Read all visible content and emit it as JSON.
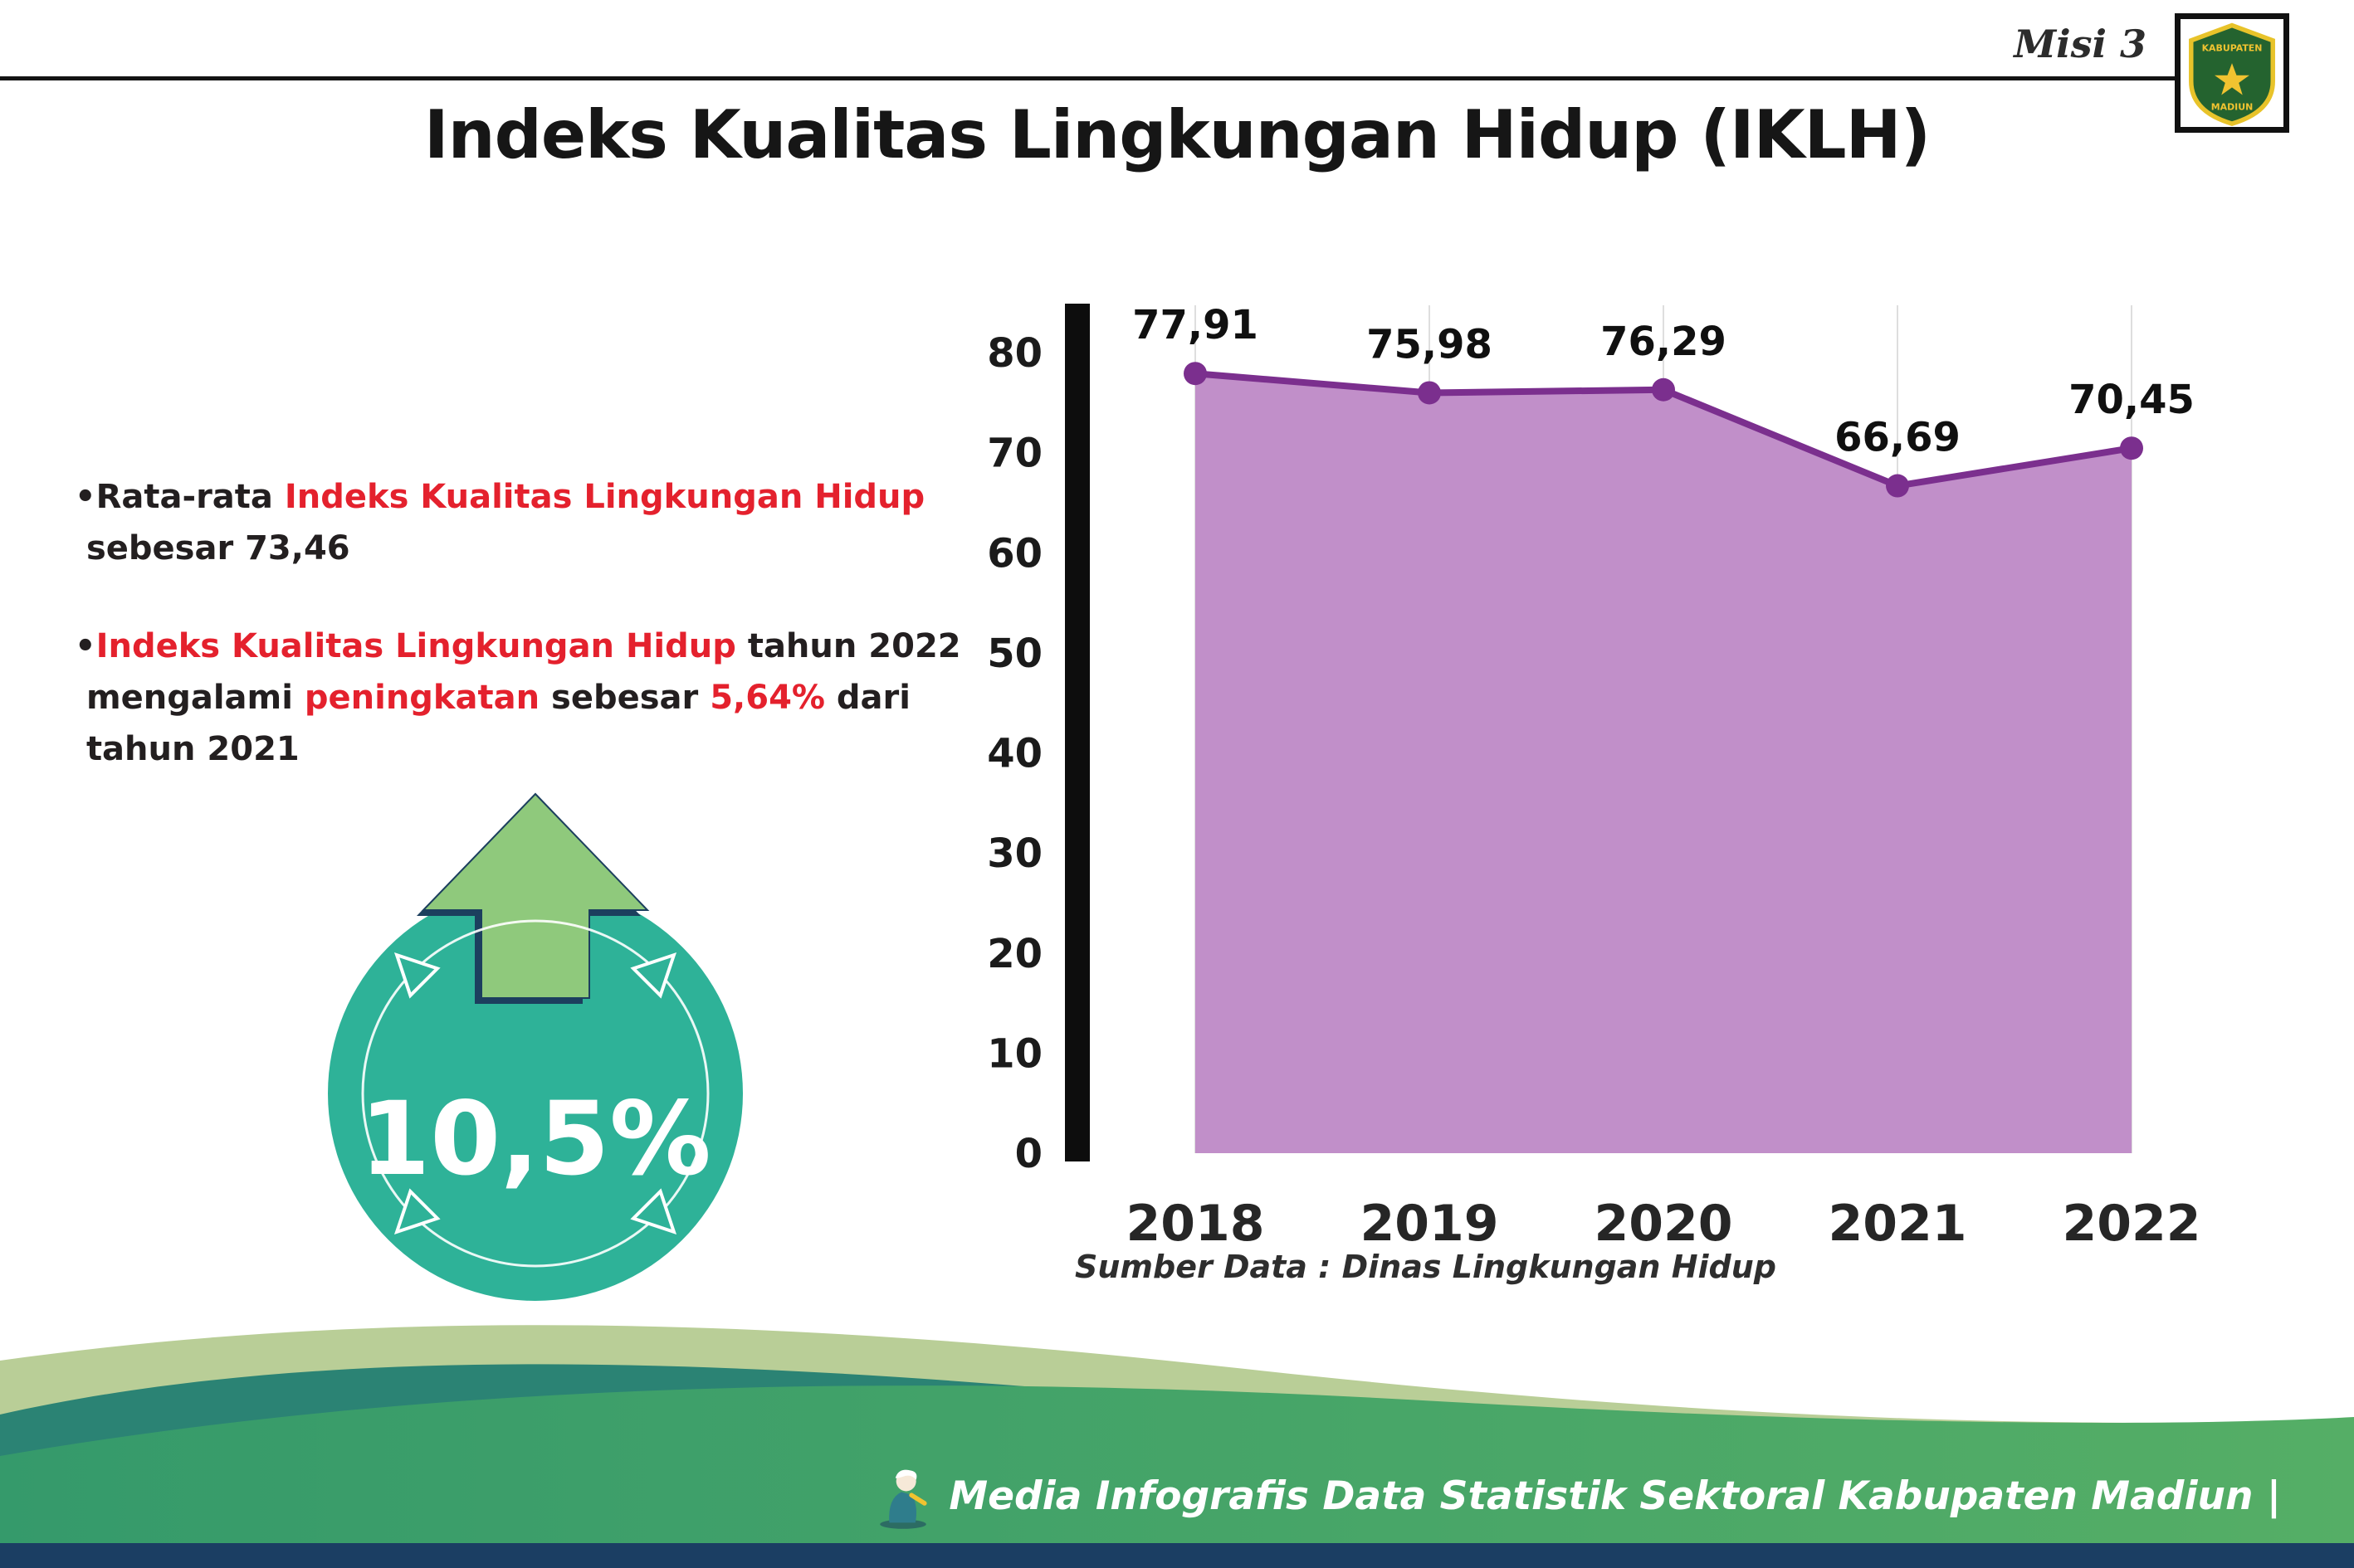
{
  "header": {
    "misi_label": "Misi 3",
    "title": "Indeks Kualitas Lingkungan Hidup (IKLH)",
    "logo": {
      "line1": "KABUPATEN",
      "line2": "MADIUN"
    }
  },
  "colors": {
    "highlight_red": "#e4212d",
    "badge_teal": "#2eb298",
    "arrow_green": "#8fc97c",
    "arrow_outline_navy": "#1c3f5e",
    "footer_green": "#43a266",
    "footer_teal": "#2b8374",
    "footer_sage": "#b9ce97",
    "footer_navy": "#1b3e63"
  },
  "bullets": [
    {
      "segments": [
        {
          "text": "•Rata-rata "
        },
        {
          "text": "Indeks Kualitas Lingkungan Hidup"
        },
        {
          "text": "\n sebesar 73,46"
        }
      ]
    },
    {
      "segments": [
        {
          "text": "•"
        },
        {
          "text": "Indeks Kualitas Lingkungan Hidup"
        },
        {
          "text": " tahun 2022\n mengalami "
        },
        {
          "text": "peningkatan"
        },
        {
          "text": " sebesar "
        },
        {
          "text": "5,64%"
        },
        {
          "text": " dari\n tahun 2021"
        }
      ]
    }
  ],
  "badge": {
    "value": "10,5%"
  },
  "chart_data": {
    "type": "area",
    "categories": [
      "2018",
      "2019",
      "2020",
      "2021",
      "2022"
    ],
    "values": [
      77.91,
      75.98,
      76.29,
      66.69,
      70.45
    ],
    "point_labels": [
      "77,91",
      "75,98",
      "76,29",
      "66,69",
      "70,45"
    ],
    "title": "",
    "xlabel": "",
    "ylabel": "",
    "ylim": [
      0,
      80
    ],
    "yticks": [
      0,
      10,
      20,
      30,
      40,
      50,
      60,
      70,
      80
    ],
    "grid": "faint vertical gridlines per year",
    "legend": "none",
    "line_color": "#7b2f8e",
    "fill_color": "#c18fc9",
    "source": "Sumber Data : Dinas Lingkungan Hidup"
  },
  "footer": {
    "caption": "Media Infografis Data Statistik Sektoral Kabupaten Madiun |"
  }
}
